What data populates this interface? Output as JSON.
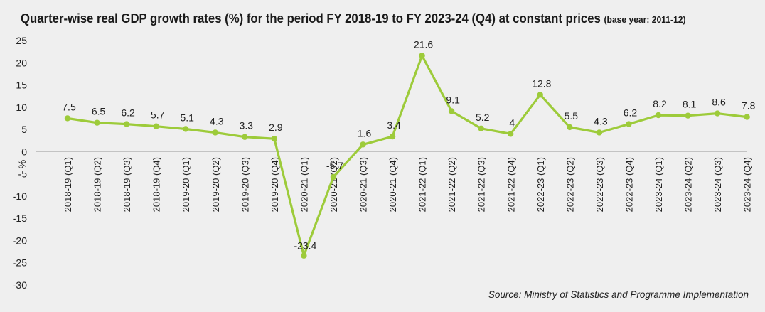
{
  "chart_data": {
    "type": "line",
    "title": "Quarter-wise real GDP growth rates (%) for the period FY 2018-19 to FY 2023-24 (Q4) at constant prices",
    "subtitle": "(base year: 2011-12)",
    "xlabel": "",
    "ylabel": "%",
    "ylim": [
      -30,
      25
    ],
    "yticks": [
      25,
      20,
      15,
      10,
      5,
      0,
      -5,
      -10,
      -15,
      -20,
      -25,
      -30
    ],
    "grid": false,
    "categories": [
      "2018-19 (Q1)",
      "2018-19 (Q2)",
      "2018-19 (Q3)",
      "2018-19 (Q4)",
      "2019-20 (Q1)",
      "2019-20 (Q2)",
      "2019-20 (Q3)",
      "2019-20 (Q4)",
      "2020-21 (Q1)",
      "2020-21 (Q2)",
      "2020-21 (Q3)",
      "2020-21 (Q4)",
      "2021-22 (Q1)",
      "2021-22 (Q2)",
      "2021-22 (Q3)",
      "2021-22 (Q4)",
      "2022-23 (Q1)",
      "2022-23 (Q2)",
      "2022-23 (Q3)",
      "2022-23 (Q4)",
      "2023-24 (Q1)",
      "2023-24 (Q2)",
      "2023-24 (Q3)",
      "2023-24 (Q4)"
    ],
    "values": [
      7.5,
      6.5,
      6.2,
      5.7,
      5.1,
      4.3,
      3.3,
      2.9,
      -23.4,
      -5.7,
      1.6,
      3.4,
      21.6,
      9.1,
      5.2,
      4,
      12.8,
      5.5,
      4.3,
      6.2,
      8.2,
      8.1,
      8.6,
      7.8
    ],
    "data_labels": [
      "7.5",
      "6.5",
      "6.2",
      "5.7",
      "5.1",
      "4.3",
      "3.3",
      "2.9",
      "-23.4",
      "-5.7",
      "1.6",
      "3.4",
      "21.6",
      "9.1",
      "5.2",
      "4",
      "12.8",
      "5.5",
      "4.3",
      "6.2",
      "8.2",
      "8.1",
      "8.6",
      "7.8"
    ],
    "line_color": "#9dcb3a"
  },
  "source": "Source: Ministry of Statistics and Programme Implementation"
}
